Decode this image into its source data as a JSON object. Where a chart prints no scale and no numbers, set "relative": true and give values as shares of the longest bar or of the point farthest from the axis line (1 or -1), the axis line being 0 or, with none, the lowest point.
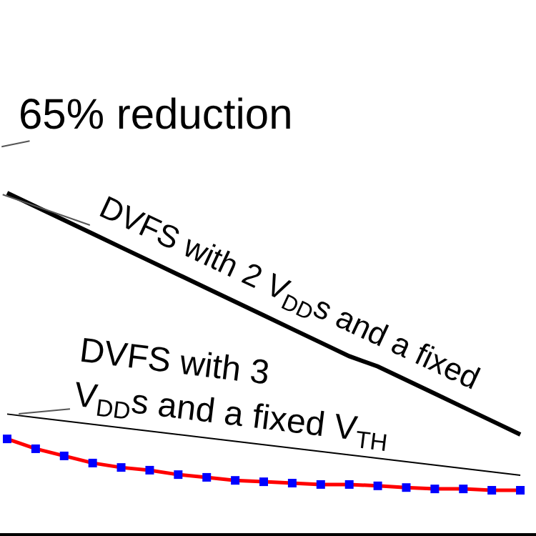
{
  "chart_data": {
    "type": "line",
    "relative": true,
    "categories": [
      null,
      null,
      null,
      null,
      null,
      null,
      null,
      null,
      null,
      null,
      null,
      null,
      null,
      null,
      null,
      null,
      null,
      null,
      null
    ],
    "annotations": [
      "65% reduction",
      "DVFS with 2 V$_{DD}$s and a fixed",
      "DVFS with 3\nV$_{DD}$s and a fixed V$_{TH}$"
    ],
    "series": [
      {
        "color": "#000000",
        "values": [
          1.0,
          0.96,
          0.92,
          0.88,
          0.84,
          0.8,
          0.76,
          0.72,
          0.68,
          0.64,
          0.6,
          0.56,
          0.52,
          0.49,
          0.45,
          0.41,
          0.37,
          0.33,
          0.29
        ]
      },
      {
        "color": "#000000",
        "values": [
          0.35,
          0.34,
          0.33,
          0.32,
          0.31,
          0.3,
          0.29,
          0.28,
          0.27,
          0.26,
          0.25,
          0.24,
          0.23,
          0.22,
          0.21,
          0.2,
          0.19,
          0.18,
          0.17
        ]
      },
      {
        "color": "#ff0000",
        "marker": "square",
        "colors": [
          "#0000ff",
          "#0000ff",
          "#0000ff",
          "#0000ff",
          "#0000ff",
          "#0000ff",
          "#0000ff",
          "#0000ff",
          "#0000ff",
          "#0000ff",
          "#0000ff",
          "#0000ff",
          "#0000ff",
          "#0000ff",
          "#0000ff",
          "#0000ff",
          "#0000ff",
          "#0000ff",
          "#0000ff"
        ],
        "values": [
          0.277,
          0.248,
          0.227,
          0.206,
          0.193,
          0.185,
          0.172,
          0.164,
          0.155,
          0.151,
          0.147,
          0.143,
          0.143,
          0.139,
          0.134,
          0.13,
          0.13,
          0.126,
          0.126
        ]
      }
    ]
  }
}
